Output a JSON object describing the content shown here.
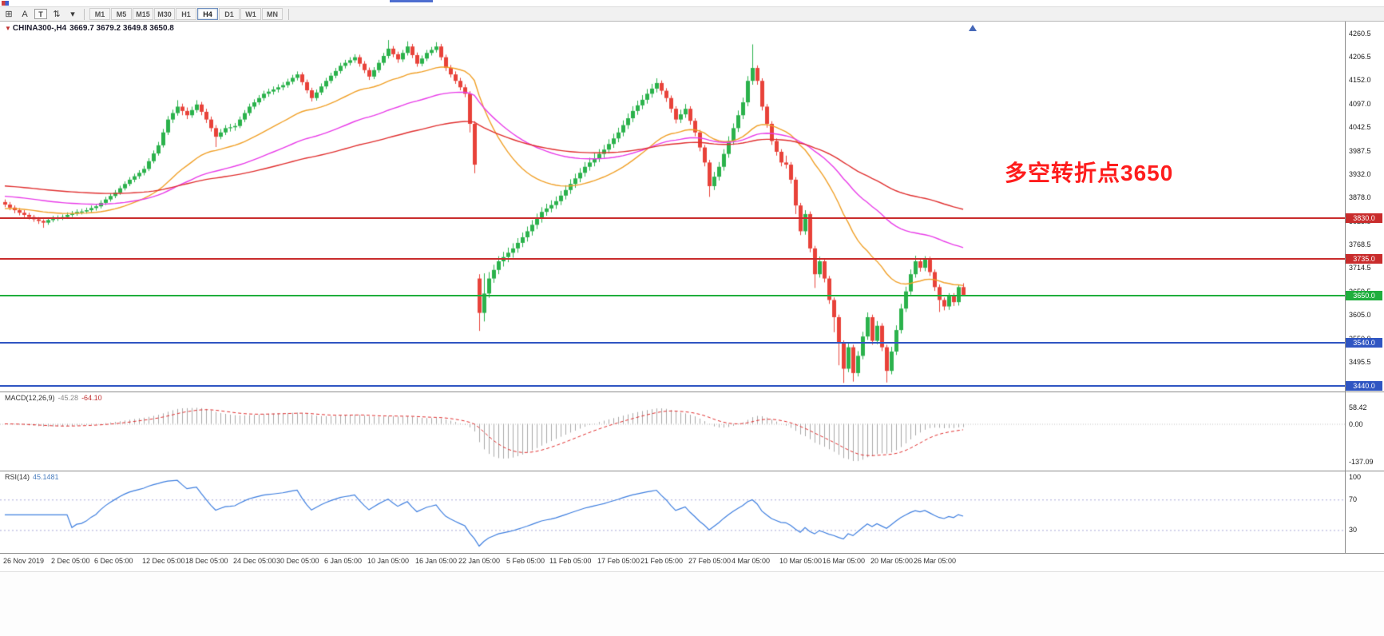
{
  "window": {
    "top_fragment_color": "#2f55c8"
  },
  "toolbar": {
    "tools": [
      {
        "name": "quotes-grid-icon",
        "glyph": "⊞"
      },
      {
        "name": "cursor-a-icon",
        "glyph": "A"
      },
      {
        "name": "text-tool-icon",
        "glyph": "T"
      },
      {
        "name": "arrows-updown-icon",
        "glyph": "⇅"
      },
      {
        "name": "dropdown-caret-icon",
        "glyph": "▾"
      }
    ],
    "timeframes": [
      "M1",
      "M5",
      "M15",
      "M30",
      "H1",
      "H4",
      "D1",
      "W1",
      "MN"
    ],
    "active_timeframe": "H4"
  },
  "chart_header": {
    "symbol": "CHINA300-,H4",
    "ohlc": "3669.7 3679.2 3649.8 3650.8"
  },
  "annotation": {
    "text": "多空转折点3650",
    "color": "#fe1c1c"
  },
  "macd": {
    "name": "MACD(12,26,9)",
    "main_value": "-45.28",
    "signal_value": "-64.10",
    "params": [
      12,
      26,
      9
    ],
    "ticks": [
      {
        "label": "58.42",
        "value": 58.42
      },
      {
        "label": "0.00",
        "value": 0
      },
      {
        "label": "-137.09",
        "value": -137.09
      }
    ]
  },
  "rsi": {
    "name": "RSI(14)",
    "value": "45.1481",
    "period": 14,
    "levels": [
      70,
      30
    ],
    "ticks": [
      {
        "label": "100",
        "value": 100
      },
      {
        "label": "70",
        "value": 70
      },
      {
        "label": "30",
        "value": 30
      }
    ]
  },
  "colors": {
    "up": "#2bb24c",
    "down": "#e8423a",
    "macd_hist": "#a8a8a8",
    "macd_signal": "#e03030",
    "rsi_line": "#3f7fdf",
    "rsi_level": "#a9a9d9",
    "axis_text": "#1a1a1a"
  },
  "chart_data": {
    "type": "candlestick",
    "symbol": "CHINA300-",
    "timeframe": "H4",
    "axes": {
      "price_min": 3427,
      "price_max": 4288,
      "macd_min": -170,
      "macd_max": 115,
      "rsi_min": 0,
      "rsi_max": 107
    },
    "price_ticks": [
      4260.5,
      4206.5,
      4152.0,
      4097.0,
      4042.5,
      3987.5,
      3932.0,
      3878.0,
      3823.5,
      3768.5,
      3714.5,
      3659.5,
      3605.0,
      3550.0,
      3495.5
    ],
    "hlines": [
      {
        "price": 3830,
        "label": "3830.0",
        "color": "#c92c2c"
      },
      {
        "price": 3735,
        "label": "3735.0",
        "color": "#c92c2c"
      },
      {
        "price": 3650,
        "label": "3650.0",
        "color": "#1fae3d"
      },
      {
        "price": 3540,
        "label": "3540.0",
        "color": "#2f55c2"
      },
      {
        "price": 3440,
        "label": "3440.0",
        "color": "#2f55c2"
      }
    ],
    "moving_averages": [
      {
        "period": 30,
        "color": "#f0a028",
        "start": 3852
      },
      {
        "period": 65,
        "color": "#e83ce8",
        "start": 3882
      },
      {
        "period": 130,
        "color": "#e03030",
        "start": 3906
      }
    ],
    "time_labels": [
      {
        "bar": 0,
        "text": "26 Nov 2019"
      },
      {
        "bar": 10,
        "text": "2 Dec 05:00"
      },
      {
        "bar": 19,
        "text": "6 Dec 05:00"
      },
      {
        "bar": 29,
        "text": "12 Dec 05:00"
      },
      {
        "bar": 38,
        "text": "18 Dec 05:00"
      },
      {
        "bar": 48,
        "text": "24 Dec 05:00"
      },
      {
        "bar": 57,
        "text": "30 Dec 05:00"
      },
      {
        "bar": 67,
        "text": "6 Jan 05:00"
      },
      {
        "bar": 76,
        "text": "10 Jan 05:00"
      },
      {
        "bar": 86,
        "text": "16 Jan 05:00"
      },
      {
        "bar": 95,
        "text": "22 Jan 05:00"
      },
      {
        "bar": 105,
        "text": "5 Feb 05:00"
      },
      {
        "bar": 114,
        "text": "11 Feb 05:00"
      },
      {
        "bar": 124,
        "text": "17 Feb 05:00"
      },
      {
        "bar": 133,
        "text": "21 Feb 05:00"
      },
      {
        "bar": 143,
        "text": "27 Feb 05:00"
      },
      {
        "bar": 152,
        "text": "4 Mar 05:00"
      },
      {
        "bar": 162,
        "text": "10 Mar 05:00"
      },
      {
        "bar": 171,
        "text": "16 Mar 05:00"
      },
      {
        "bar": 181,
        "text": "20 Mar 05:00"
      },
      {
        "bar": 190,
        "text": "26 Mar 05:00"
      }
    ],
    "candles": [
      [
        3868,
        3874,
        3856,
        3862
      ],
      [
        3862,
        3868,
        3849,
        3855
      ],
      [
        3855,
        3860,
        3842,
        3849
      ],
      [
        3849,
        3854,
        3837,
        3843
      ],
      [
        3843,
        3849,
        3832,
        3838
      ],
      [
        3838,
        3843,
        3827,
        3833
      ],
      [
        3833,
        3838,
        3822,
        3828
      ],
      [
        3828,
        3833,
        3817,
        3824
      ],
      [
        3824,
        3828,
        3808,
        3820
      ],
      [
        3820,
        3832,
        3815,
        3826
      ],
      [
        3826,
        3836,
        3821,
        3830
      ],
      [
        3830,
        3837,
        3824,
        3831
      ],
      [
        3831,
        3839,
        3826,
        3833
      ],
      [
        3833,
        3844,
        3829,
        3838
      ],
      [
        3838,
        3847,
        3833,
        3841
      ],
      [
        3841,
        3851,
        3836,
        3845
      ],
      [
        3845,
        3852,
        3839,
        3846
      ],
      [
        3846,
        3855,
        3841,
        3849
      ],
      [
        3849,
        3860,
        3844,
        3854
      ],
      [
        3854,
        3864,
        3848,
        3858
      ],
      [
        3858,
        3872,
        3853,
        3866
      ],
      [
        3866,
        3880,
        3861,
        3874
      ],
      [
        3874,
        3888,
        3869,
        3882
      ],
      [
        3882,
        3896,
        3877,
        3890
      ],
      [
        3890,
        3906,
        3885,
        3900
      ],
      [
        3900,
        3916,
        3895,
        3910
      ],
      [
        3910,
        3926,
        3905,
        3920
      ],
      [
        3920,
        3934,
        3914,
        3928
      ],
      [
        3928,
        3942,
        3922,
        3936
      ],
      [
        3936,
        3952,
        3930,
        3945
      ],
      [
        3945,
        3970,
        3940,
        3963
      ],
      [
        3963,
        3988,
        3958,
        3981
      ],
      [
        3981,
        4008,
        3976,
        4000
      ],
      [
        4000,
        4038,
        3995,
        4030
      ],
      [
        4030,
        4068,
        4024,
        4060
      ],
      [
        4060,
        4083,
        4052,
        4075
      ],
      [
        4075,
        4105,
        4069,
        4090
      ],
      [
        4090,
        4097,
        4070,
        4080
      ],
      [
        4080,
        4088,
        4061,
        4070
      ],
      [
        4070,
        4090,
        4064,
        4082
      ],
      [
        4082,
        4105,
        4076,
        4095
      ],
      [
        4095,
        4101,
        4070,
        4078
      ],
      [
        4078,
        4085,
        4052,
        4060
      ],
      [
        4060,
        4067,
        4032,
        4040
      ],
      [
        4040,
        4047,
        3996,
        4020
      ],
      [
        4020,
        4038,
        4014,
        4030
      ],
      [
        4030,
        4047,
        4024,
        4040
      ],
      [
        4040,
        4050,
        4032,
        4042
      ],
      [
        4042,
        4052,
        4034,
        4045
      ],
      [
        4045,
        4067,
        4040,
        4060
      ],
      [
        4060,
        4082,
        4054,
        4075
      ],
      [
        4075,
        4097,
        4069,
        4090
      ],
      [
        4090,
        4107,
        4084,
        4100
      ],
      [
        4100,
        4117,
        4094,
        4110
      ],
      [
        4110,
        4127,
        4104,
        4120
      ],
      [
        4120,
        4132,
        4113,
        4125
      ],
      [
        4125,
        4137,
        4118,
        4130
      ],
      [
        4130,
        4142,
        4123,
        4135
      ],
      [
        4135,
        4147,
        4128,
        4140
      ],
      [
        4140,
        4155,
        4134,
        4148
      ],
      [
        4148,
        4164,
        4142,
        4157
      ],
      [
        4157,
        4172,
        4151,
        4165
      ],
      [
        4165,
        4170,
        4140,
        4147
      ],
      [
        4147,
        4153,
        4121,
        4128
      ],
      [
        4128,
        4134,
        4102,
        4110
      ],
      [
        4110,
        4130,
        4104,
        4123
      ],
      [
        4123,
        4144,
        4117,
        4137
      ],
      [
        4137,
        4157,
        4131,
        4150
      ],
      [
        4150,
        4169,
        4144,
        4162
      ],
      [
        4162,
        4180,
        4156,
        4173
      ],
      [
        4173,
        4192,
        4167,
        4185
      ],
      [
        4185,
        4199,
        4179,
        4192
      ],
      [
        4192,
        4205,
        4186,
        4198
      ],
      [
        4198,
        4212,
        4192,
        4205
      ],
      [
        4205,
        4211,
        4183,
        4190
      ],
      [
        4190,
        4196,
        4168,
        4175
      ],
      [
        4175,
        4181,
        4152,
        4160
      ],
      [
        4160,
        4182,
        4154,
        4175
      ],
      [
        4175,
        4199,
        4169,
        4192
      ],
      [
        4192,
        4215,
        4186,
        4208
      ],
      [
        4208,
        4245,
        4202,
        4225
      ],
      [
        4225,
        4231,
        4205,
        4212
      ],
      [
        4212,
        4218,
        4192,
        4200
      ],
      [
        4200,
        4222,
        4194,
        4215
      ],
      [
        4215,
        4242,
        4209,
        4230
      ],
      [
        4230,
        4236,
        4203,
        4210
      ],
      [
        4210,
        4216,
        4183,
        4190
      ],
      [
        4190,
        4209,
        4184,
        4202
      ],
      [
        4202,
        4222,
        4196,
        4215
      ],
      [
        4215,
        4229,
        4209,
        4222
      ],
      [
        4222,
        4240,
        4216,
        4230
      ],
      [
        4230,
        4236,
        4198,
        4205
      ],
      [
        4205,
        4211,
        4173,
        4180
      ],
      [
        4180,
        4187,
        4158,
        4165
      ],
      [
        4165,
        4172,
        4143,
        4150
      ],
      [
        4150,
        4157,
        4128,
        4135
      ],
      [
        4135,
        4142,
        4112,
        4120
      ],
      [
        4120,
        4126,
        4030,
        4050
      ],
      [
        4050,
        4056,
        3935,
        3955
      ],
      [
        3690,
        3700,
        3568,
        3610
      ],
      [
        3610,
        3702,
        3590,
        3655
      ],
      [
        3655,
        3705,
        3645,
        3690
      ],
      [
        3690,
        3722,
        3680,
        3710
      ],
      [
        3710,
        3742,
        3700,
        3730
      ],
      [
        3730,
        3752,
        3718,
        3740
      ],
      [
        3740,
        3762,
        3728,
        3750
      ],
      [
        3750,
        3772,
        3738,
        3760
      ],
      [
        3760,
        3784,
        3750,
        3773
      ],
      [
        3773,
        3797,
        3763,
        3786
      ],
      [
        3786,
        3811,
        3776,
        3800
      ],
      [
        3800,
        3826,
        3790,
        3815
      ],
      [
        3815,
        3841,
        3805,
        3830
      ],
      [
        3830,
        3856,
        3820,
        3845
      ],
      [
        3845,
        3864,
        3836,
        3853
      ],
      [
        3853,
        3872,
        3844,
        3861
      ],
      [
        3861,
        3881,
        3852,
        3870
      ],
      [
        3870,
        3894,
        3861,
        3883
      ],
      [
        3883,
        3907,
        3874,
        3896
      ],
      [
        3896,
        3921,
        3887,
        3910
      ],
      [
        3910,
        3934,
        3901,
        3923
      ],
      [
        3923,
        3947,
        3914,
        3936
      ],
      [
        3936,
        3961,
        3927,
        3950
      ],
      [
        3950,
        3971,
        3941,
        3960
      ],
      [
        3960,
        3981,
        3951,
        3970
      ],
      [
        3970,
        3991,
        3961,
        3980
      ],
      [
        3980,
        4001,
        3971,
        3990
      ],
      [
        3990,
        4014,
        3981,
        4003
      ],
      [
        4003,
        4027,
        3994,
        4016
      ],
      [
        4016,
        4041,
        4007,
        4030
      ],
      [
        4030,
        4058,
        4021,
        4047
      ],
      [
        4047,
        4074,
        4038,
        4063
      ],
      [
        4063,
        4091,
        4054,
        4080
      ],
      [
        4080,
        4104,
        4071,
        4093
      ],
      [
        4093,
        4117,
        4084,
        4106
      ],
      [
        4106,
        4131,
        4097,
        4120
      ],
      [
        4120,
        4143,
        4111,
        4132
      ],
      [
        4132,
        4156,
        4123,
        4145
      ],
      [
        4145,
        4151,
        4118,
        4127
      ],
      [
        4127,
        4133,
        4101,
        4110
      ],
      [
        4110,
        4116,
        4076,
        4085
      ],
      [
        4085,
        4091,
        4051,
        4060
      ],
      [
        4060,
        4083,
        4052,
        4072
      ],
      [
        4072,
        4096,
        4064,
        4085
      ],
      [
        4085,
        4091,
        4048,
        4057
      ],
      [
        4057,
        4063,
        4021,
        4030
      ],
      [
        4030,
        4036,
        3986,
        3995
      ],
      [
        3995,
        4001,
        3951,
        3960
      ],
      [
        3960,
        3966,
        3880,
        3905
      ],
      [
        3905,
        3938,
        3896,
        3927
      ],
      [
        3927,
        3961,
        3918,
        3950
      ],
      [
        3950,
        3991,
        3941,
        3980
      ],
      [
        3980,
        4021,
        3971,
        4010
      ],
      [
        4010,
        4051,
        4001,
        4040
      ],
      [
        4040,
        4081,
        4031,
        4070
      ],
      [
        4070,
        4111,
        4061,
        4100
      ],
      [
        4100,
        4161,
        4091,
        4150
      ],
      [
        4150,
        4235,
        4141,
        4180
      ],
      [
        4180,
        4186,
        4141,
        4150
      ],
      [
        4150,
        4156,
        4081,
        4090
      ],
      [
        4090,
        4096,
        4041,
        4050
      ],
      [
        4050,
        4056,
        4001,
        4010
      ],
      [
        4010,
        4016,
        3976,
        3985
      ],
      [
        3985,
        3991,
        3951,
        3960
      ],
      [
        3960,
        3976,
        3946,
        3955
      ],
      [
        3955,
        3961,
        3911,
        3920
      ],
      [
        3920,
        3926,
        3840,
        3860
      ],
      [
        3860,
        3866,
        3791,
        3800
      ],
      [
        3800,
        3849,
        3792,
        3840
      ],
      [
        3840,
        3846,
        3751,
        3760
      ],
      [
        3760,
        3766,
        3668,
        3700
      ],
      [
        3700,
        3741,
        3692,
        3730
      ],
      [
        3730,
        3736,
        3681,
        3690
      ],
      [
        3690,
        3696,
        3631,
        3640
      ],
      [
        3640,
        3646,
        3565,
        3600
      ],
      [
        3600,
        3606,
        3488,
        3540
      ],
      [
        3540,
        3546,
        3447,
        3480
      ],
      [
        3480,
        3541,
        3472,
        3530
      ],
      [
        3530,
        3536,
        3450,
        3470
      ],
      [
        3470,
        3521,
        3462,
        3510
      ],
      [
        3510,
        3566,
        3502,
        3555
      ],
      [
        3555,
        3611,
        3547,
        3600
      ],
      [
        3600,
        3606,
        3536,
        3545
      ],
      [
        3545,
        3591,
        3537,
        3580
      ],
      [
        3580,
        3586,
        3521,
        3530
      ],
      [
        3530,
        3536,
        3448,
        3475
      ],
      [
        3475,
        3531,
        3467,
        3520
      ],
      [
        3520,
        3581,
        3512,
        3570
      ],
      [
        3570,
        3631,
        3562,
        3620
      ],
      [
        3620,
        3671,
        3612,
        3660
      ],
      [
        3660,
        3711,
        3652,
        3700
      ],
      [
        3700,
        3743,
        3692,
        3730
      ],
      [
        3730,
        3736,
        3706,
        3715
      ],
      [
        3715,
        3742,
        3707,
        3735
      ],
      [
        3735,
        3741,
        3696,
        3705
      ],
      [
        3705,
        3711,
        3661,
        3670
      ],
      [
        3670,
        3676,
        3612,
        3640
      ],
      [
        3640,
        3646,
        3616,
        3625
      ],
      [
        3625,
        3656,
        3617,
        3650
      ],
      [
        3650,
        3656,
        3626,
        3635
      ],
      [
        3635,
        3676,
        3627,
        3670
      ],
      [
        3670,
        3679,
        3650,
        3651
      ]
    ]
  }
}
